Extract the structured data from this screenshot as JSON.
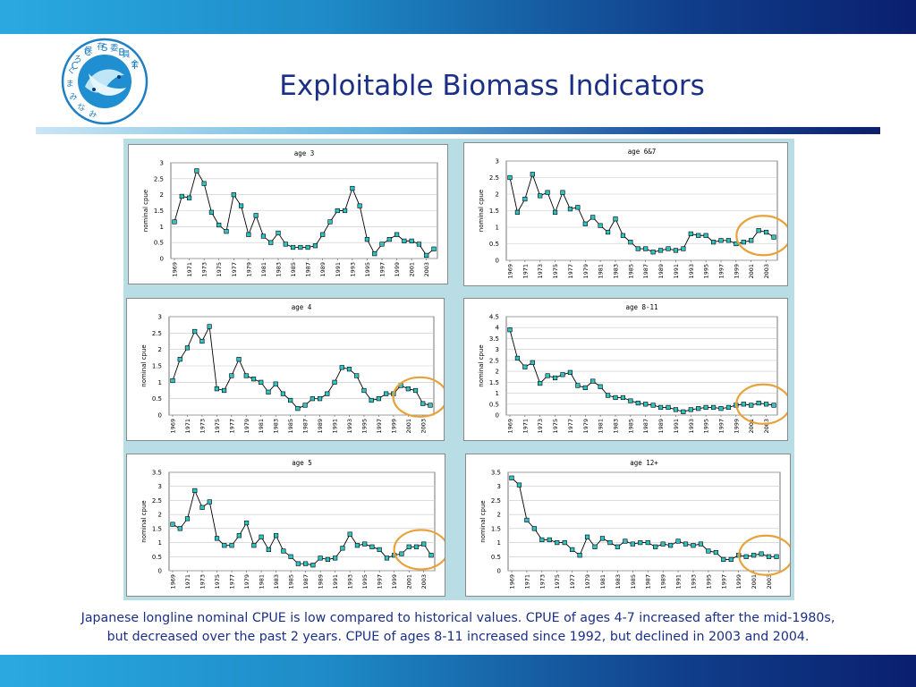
{
  "slide": {
    "title": "Exploitable Biomass Indicators",
    "caption_line1": "Japanese longline nominal CPUE is low compared to historical values. CPUE of ages 4-7 increased after the mid-1980s,",
    "caption_line2": "but decreased over the past 2 years. CPUE of ages 8-11 increased since 1992, but declined in 2003 and 2004."
  },
  "logo": {
    "letters": [
      "C",
      "C",
      "S",
      "B",
      "T"
    ],
    "kana": [
      "み",
      "な",
      "み",
      "ま",
      "ぐ",
      "ろ",
      "保",
      "存",
      "委",
      "員",
      "会"
    ]
  },
  "colors": {
    "title": "#1a2f86",
    "marker_fill": "#2ec4c4",
    "highlight_circle": "#e8a23a",
    "panel_background": "#b9dde4"
  },
  "chart_data": [
    {
      "id": "age3",
      "type": "line",
      "title": "age 3",
      "ylabel": "nominal cpue",
      "ylim": [
        0,
        3
      ],
      "yticks": [
        0,
        0.5,
        1,
        1.5,
        2,
        2.5,
        3
      ],
      "x": [
        1969,
        1970,
        1971,
        1972,
        1973,
        1974,
        1975,
        1976,
        1977,
        1978,
        1979,
        1980,
        1981,
        1982,
        1983,
        1984,
        1985,
        1986,
        1987,
        1988,
        1989,
        1990,
        1991,
        1992,
        1993,
        1994,
        1995,
        1996,
        1997,
        1998,
        1999,
        2000,
        2001,
        2002,
        2003,
        2004
      ],
      "xticks": [
        "1969",
        "1971",
        "1973",
        "1975",
        "1977",
        "1979",
        "1981",
        "1983",
        "1985",
        "1987",
        "1989",
        "1991",
        "1993",
        "1995",
        "1997",
        "1999",
        "2001",
        "2003"
      ],
      "values": [
        1.15,
        1.95,
        1.9,
        2.75,
        2.35,
        1.45,
        1.05,
        0.85,
        2.0,
        1.65,
        0.75,
        1.35,
        0.7,
        0.5,
        0.8,
        0.45,
        0.35,
        0.35,
        0.35,
        0.4,
        0.75,
        1.15,
        1.5,
        1.5,
        2.2,
        1.65,
        0.6,
        0.15,
        0.45,
        0.6,
        0.75,
        0.55,
        0.55,
        0.45,
        0.1,
        0.3
      ],
      "highlight": false
    },
    {
      "id": "age67",
      "type": "line",
      "title": "age 6&7",
      "ylabel": "nominal cpue",
      "ylim": [
        0,
        3
      ],
      "yticks": [
        0,
        0.5,
        1,
        1.5,
        2,
        2.5,
        3
      ],
      "x": [
        1969,
        1970,
        1971,
        1972,
        1973,
        1974,
        1975,
        1976,
        1977,
        1978,
        1979,
        1980,
        1981,
        1982,
        1983,
        1984,
        1985,
        1986,
        1987,
        1988,
        1989,
        1990,
        1991,
        1992,
        1993,
        1994,
        1995,
        1996,
        1997,
        1998,
        1999,
        2000,
        2001,
        2002,
        2003,
        2004
      ],
      "xticks": [
        "1969",
        "1971",
        "1973",
        "1975",
        "1977",
        "1979",
        "1981",
        "1983",
        "1985",
        "1987",
        "1989",
        "1991",
        "1993",
        "1995",
        "1997",
        "1999",
        "2001",
        "2003"
      ],
      "values": [
        2.5,
        1.45,
        1.85,
        2.6,
        1.95,
        2.05,
        1.45,
        2.05,
        1.55,
        1.6,
        1.1,
        1.3,
        1.05,
        0.85,
        1.25,
        0.75,
        0.55,
        0.35,
        0.35,
        0.25,
        0.3,
        0.35,
        0.3,
        0.35,
        0.8,
        0.75,
        0.75,
        0.55,
        0.6,
        0.6,
        0.5,
        0.55,
        0.6,
        0.9,
        0.85,
        0.7
      ],
      "highlight": true
    },
    {
      "id": "age4",
      "type": "line",
      "title": "age 4",
      "ylabel": "nominal cpue",
      "ylim": [
        0,
        3
      ],
      "yticks": [
        0,
        0.5,
        1,
        1.5,
        2,
        2.5,
        3
      ],
      "x": [
        1969,
        1970,
        1971,
        1972,
        1973,
        1974,
        1975,
        1976,
        1977,
        1978,
        1979,
        1980,
        1981,
        1982,
        1983,
        1984,
        1985,
        1986,
        1987,
        1988,
        1989,
        1990,
        1991,
        1992,
        1993,
        1994,
        1995,
        1996,
        1997,
        1998,
        1999,
        2000,
        2001,
        2002,
        2003,
        2004
      ],
      "xticks": [
        "1969",
        "1971",
        "1973",
        "1975",
        "1977",
        "1979",
        "1981",
        "1983",
        "1985",
        "1987",
        "1989",
        "1991",
        "1993",
        "1995",
        "1997",
        "1999",
        "2001",
        "2003"
      ],
      "values": [
        1.05,
        1.7,
        2.05,
        2.55,
        2.25,
        2.7,
        0.8,
        0.75,
        1.2,
        1.7,
        1.2,
        1.1,
        1.0,
        0.7,
        0.95,
        0.65,
        0.45,
        0.2,
        0.3,
        0.5,
        0.5,
        0.65,
        1.0,
        1.45,
        1.4,
        1.2,
        0.75,
        0.45,
        0.5,
        0.65,
        0.65,
        0.9,
        0.8,
        0.75,
        0.35,
        0.3
      ],
      "highlight": true
    },
    {
      "id": "age811",
      "type": "line",
      "title": "age 8-11",
      "ylabel": "nominal cpue",
      "ylim": [
        0,
        4.5
      ],
      "yticks": [
        0,
        0.5,
        1,
        1.5,
        2,
        2.5,
        3,
        3.5,
        4,
        4.5
      ],
      "x": [
        1969,
        1970,
        1971,
        1972,
        1973,
        1974,
        1975,
        1976,
        1977,
        1978,
        1979,
        1980,
        1981,
        1982,
        1983,
        1984,
        1985,
        1986,
        1987,
        1988,
        1989,
        1990,
        1991,
        1992,
        1993,
        1994,
        1995,
        1996,
        1997,
        1998,
        1999,
        2000,
        2001,
        2002,
        2003,
        2004
      ],
      "xticks": [
        "1969",
        "1971",
        "1973",
        "1975",
        "1977",
        "1979",
        "1981",
        "1983",
        "1985",
        "1987",
        "1989",
        "1991",
        "1993",
        "1995",
        "1997",
        "1999",
        "2001",
        "2003"
      ],
      "values": [
        3.9,
        2.6,
        2.2,
        2.4,
        1.45,
        1.8,
        1.7,
        1.85,
        1.95,
        1.35,
        1.25,
        1.55,
        1.3,
        0.9,
        0.8,
        0.8,
        0.65,
        0.55,
        0.5,
        0.45,
        0.35,
        0.35,
        0.25,
        0.15,
        0.25,
        0.3,
        0.35,
        0.35,
        0.3,
        0.35,
        0.45,
        0.5,
        0.45,
        0.55,
        0.5,
        0.45
      ],
      "highlight": true
    },
    {
      "id": "age5",
      "type": "line",
      "title": "age 5",
      "ylabel": "nominal cpue",
      "ylim": [
        0,
        3.5
      ],
      "yticks": [
        0,
        0.5,
        1,
        1.5,
        2,
        2.5,
        3,
        3.5
      ],
      "x": [
        1969,
        1970,
        1971,
        1972,
        1973,
        1974,
        1975,
        1976,
        1977,
        1978,
        1979,
        1980,
        1981,
        1982,
        1983,
        1984,
        1985,
        1986,
        1987,
        1988,
        1989,
        1990,
        1991,
        1992,
        1993,
        1994,
        1995,
        1996,
        1997,
        1998,
        1999,
        2000,
        2001,
        2002,
        2003,
        2004
      ],
      "xticks": [
        "1969",
        "1971",
        "1973",
        "1975",
        "1977",
        "1979",
        "1981",
        "1983",
        "1985",
        "1987",
        "1989",
        "1991",
        "1993",
        "1995",
        "1997",
        "1999",
        "2001",
        "2003"
      ],
      "values": [
        1.65,
        1.5,
        1.85,
        2.85,
        2.25,
        2.45,
        1.15,
        0.9,
        0.9,
        1.25,
        1.7,
        0.9,
        1.2,
        0.75,
        1.25,
        0.7,
        0.5,
        0.25,
        0.25,
        0.2,
        0.45,
        0.4,
        0.45,
        0.8,
        1.3,
        0.9,
        0.95,
        0.85,
        0.75,
        0.45,
        0.55,
        0.6,
        0.85,
        0.85,
        0.95,
        0.55
      ],
      "highlight": true
    },
    {
      "id": "age12",
      "type": "line",
      "title": "age 12+",
      "ylabel": "nominal cpue",
      "ylim": [
        0,
        3.5
      ],
      "yticks": [
        0,
        0.5,
        1,
        1.5,
        2,
        2.5,
        3,
        3.5
      ],
      "x": [
        1969,
        1970,
        1971,
        1972,
        1973,
        1974,
        1975,
        1976,
        1977,
        1978,
        1979,
        1980,
        1981,
        1982,
        1983,
        1984,
        1985,
        1986,
        1987,
        1988,
        1989,
        1990,
        1991,
        1992,
        1993,
        1994,
        1995,
        1996,
        1997,
        1998,
        1999,
        2000,
        2001,
        2002,
        2003,
        2004
      ],
      "xticks": [
        "1969",
        "1971",
        "1973",
        "1975",
        "1977",
        "1979",
        "1981",
        "1983",
        "1985",
        "1987",
        "1989",
        "1991",
        "1993",
        "1995",
        "1997",
        "1999",
        "2001",
        "2003"
      ],
      "values": [
        3.3,
        3.05,
        1.8,
        1.5,
        1.1,
        1.1,
        1.0,
        1.0,
        0.75,
        0.55,
        1.2,
        0.85,
        1.15,
        1.0,
        0.85,
        1.05,
        0.95,
        1.0,
        1.0,
        0.85,
        0.95,
        0.9,
        1.05,
        0.95,
        0.9,
        0.95,
        0.7,
        0.65,
        0.4,
        0.4,
        0.55,
        0.5,
        0.55,
        0.6,
        0.5,
        0.5
      ],
      "highlight": true
    }
  ]
}
